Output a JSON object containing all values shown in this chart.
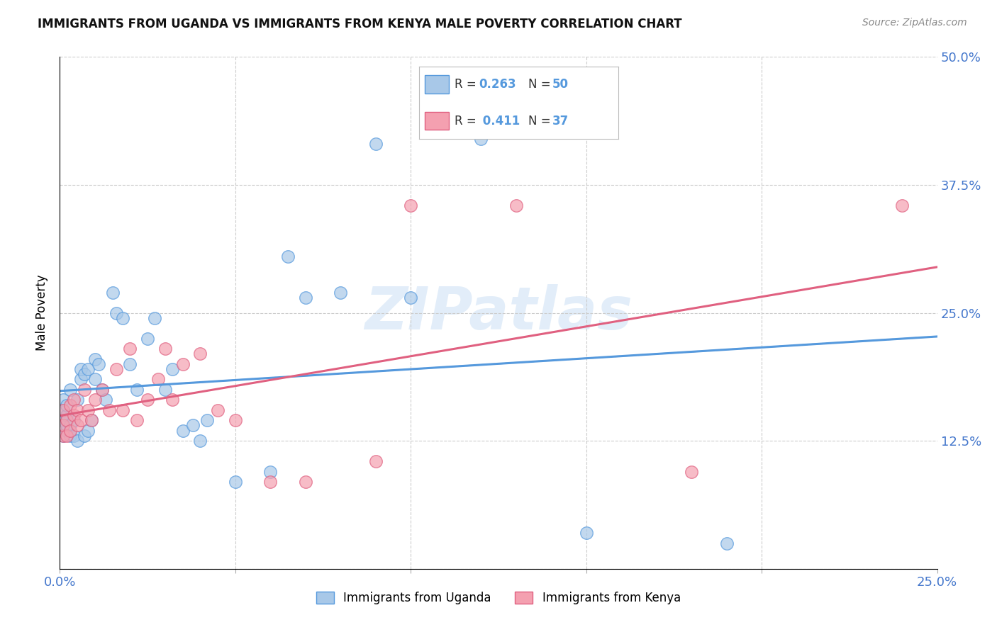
{
  "title": "IMMIGRANTS FROM UGANDA VS IMMIGRANTS FROM KENYA MALE POVERTY CORRELATION CHART",
  "source": "Source: ZipAtlas.com",
  "ylabel_label": "Male Poverty",
  "xlim": [
    0.0,
    0.25
  ],
  "ylim": [
    0.0,
    0.5
  ],
  "color_uganda": "#a8c8e8",
  "color_kenya": "#f4a0b0",
  "color_line_uganda": "#5599dd",
  "color_line_kenya": "#e06080",
  "color_dashed": "#bbbbbb",
  "watermark": "ZIPatlas",
  "series1_label": "Immigrants from Uganda",
  "series2_label": "Immigrants from Kenya",
  "background_color": "#ffffff",
  "grid_color": "#cccccc",
  "uganda_x": [
    0.001,
    0.001,
    0.001,
    0.001,
    0.002,
    0.002,
    0.002,
    0.002,
    0.003,
    0.003,
    0.003,
    0.004,
    0.004,
    0.005,
    0.005,
    0.006,
    0.006,
    0.007,
    0.007,
    0.008,
    0.008,
    0.009,
    0.01,
    0.01,
    0.011,
    0.012,
    0.013,
    0.015,
    0.016,
    0.018,
    0.02,
    0.022,
    0.025,
    0.027,
    0.03,
    0.032,
    0.035,
    0.038,
    0.04,
    0.042,
    0.05,
    0.06,
    0.065,
    0.07,
    0.08,
    0.09,
    0.1,
    0.12,
    0.15,
    0.19
  ],
  "uganda_y": [
    0.13,
    0.145,
    0.155,
    0.165,
    0.135,
    0.14,
    0.15,
    0.16,
    0.13,
    0.14,
    0.175,
    0.13,
    0.145,
    0.125,
    0.165,
    0.185,
    0.195,
    0.13,
    0.19,
    0.135,
    0.195,
    0.145,
    0.185,
    0.205,
    0.2,
    0.175,
    0.165,
    0.27,
    0.25,
    0.245,
    0.2,
    0.175,
    0.225,
    0.245,
    0.175,
    0.195,
    0.135,
    0.14,
    0.125,
    0.145,
    0.085,
    0.095,
    0.305,
    0.265,
    0.27,
    0.415,
    0.265,
    0.42,
    0.035,
    0.025
  ],
  "kenya_x": [
    0.001,
    0.001,
    0.001,
    0.002,
    0.002,
    0.003,
    0.003,
    0.004,
    0.004,
    0.005,
    0.005,
    0.006,
    0.007,
    0.008,
    0.009,
    0.01,
    0.012,
    0.014,
    0.016,
    0.018,
    0.02,
    0.022,
    0.025,
    0.028,
    0.03,
    0.032,
    0.035,
    0.04,
    0.045,
    0.05,
    0.06,
    0.07,
    0.09,
    0.1,
    0.13,
    0.18,
    0.24
  ],
  "kenya_y": [
    0.13,
    0.14,
    0.155,
    0.13,
    0.145,
    0.135,
    0.16,
    0.15,
    0.165,
    0.14,
    0.155,
    0.145,
    0.175,
    0.155,
    0.145,
    0.165,
    0.175,
    0.155,
    0.195,
    0.155,
    0.215,
    0.145,
    0.165,
    0.185,
    0.215,
    0.165,
    0.2,
    0.21,
    0.155,
    0.145,
    0.085,
    0.085,
    0.105,
    0.355,
    0.355,
    0.095,
    0.355
  ],
  "legend_line1": "R = 0.263   N = 50",
  "legend_line2": "R =  0.411   N = 37"
}
